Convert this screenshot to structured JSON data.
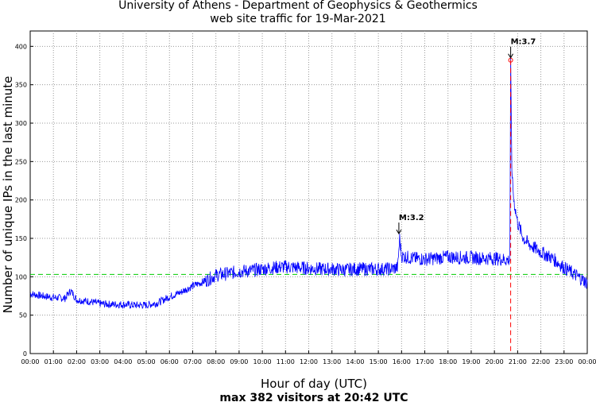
{
  "chart_data": {
    "type": "line",
    "title": "University of Athens - Department of Geophysics & Geothermics",
    "subtitle": "web site traffic for 19-Mar-2021",
    "xlabel": "Hour of day (UTC)",
    "ylabel": "Number of unique IPs in the last minute",
    "footer": "max 382 visitors at 20:42 UTC",
    "xlim_hours": [
      0,
      24
    ],
    "ylim": [
      0,
      420
    ],
    "x_ticks": [
      "00:00",
      "01:00",
      "02:00",
      "03:00",
      "04:00",
      "05:00",
      "06:00",
      "07:00",
      "08:00",
      "09:00",
      "10:00",
      "11:00",
      "12:00",
      "13:00",
      "14:00",
      "15:00",
      "16:00",
      "17:00",
      "18:00",
      "19:00",
      "20:00",
      "21:00",
      "22:00",
      "23:00",
      "00:00"
    ],
    "y_ticks": [
      0,
      50,
      100,
      150,
      200,
      250,
      300,
      350,
      400
    ],
    "grid": true,
    "reference_line": {
      "y": 103,
      "color": "#00cc00",
      "style": "dashed"
    },
    "max_marker": {
      "time": "20:42",
      "value": 382,
      "color": "#ff0000"
    },
    "event_line": {
      "time": "20:42",
      "color": "#ff0000",
      "style": "dashed"
    },
    "annotations": [
      {
        "text": "M:3.7",
        "time": "20:42",
        "value": 382
      },
      {
        "text": "M:3.2",
        "time": "15:53",
        "value": 153
      }
    ],
    "series": [
      {
        "color": "#0000ff",
        "x": [
          "00:00",
          "00:30",
          "01:00",
          "01:30",
          "01:45",
          "02:00",
          "02:30",
          "03:00",
          "03:30",
          "04:00",
          "04:30",
          "05:00",
          "05:30",
          "06:00",
          "06:30",
          "07:00",
          "07:30",
          "08:00",
          "08:30",
          "09:00",
          "09:30",
          "10:00",
          "10:30",
          "11:00",
          "11:30",
          "12:00",
          "12:30",
          "13:00",
          "13:30",
          "14:00",
          "14:30",
          "15:00",
          "15:30",
          "15:50",
          "15:55",
          "16:00",
          "16:30",
          "17:00",
          "17:30",
          "18:00",
          "18:30",
          "19:00",
          "19:30",
          "20:00",
          "20:30",
          "20:40",
          "20:42",
          "20:45",
          "20:50",
          "21:00",
          "21:15",
          "21:30",
          "22:00",
          "22:30",
          "23:00",
          "23:30",
          "24:00"
        ],
        "y": [
          78,
          75,
          73,
          72,
          82,
          70,
          68,
          65,
          64,
          64,
          63,
          63,
          66,
          74,
          80,
          88,
          94,
          102,
          104,
          107,
          108,
          110,
          112,
          113,
          112,
          111,
          110,
          110,
          109,
          110,
          110,
          110,
          110,
          112,
          150,
          127,
          124,
          123,
          124,
          126,
          125,
          125,
          124,
          124,
          122,
          122,
          382,
          240,
          200,
          170,
          150,
          142,
          132,
          124,
          112,
          102,
          92
        ]
      }
    ]
  }
}
